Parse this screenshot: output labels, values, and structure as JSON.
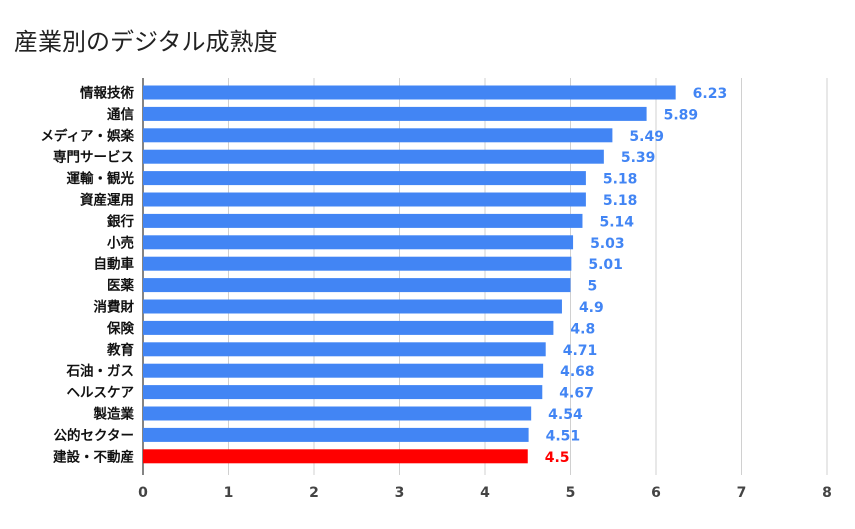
{
  "chart_data": {
    "type": "bar",
    "orientation": "horizontal",
    "title": "産業別のデジタル成熟度",
    "categories": [
      "情報技術",
      "通信",
      "メディア・娯楽",
      "専門サービス",
      "運輸・観光",
      "資産運用",
      "銀行",
      "小売",
      "自動車",
      "医薬",
      "消費財",
      "保険",
      "教育",
      "石油・ガス",
      "ヘルスケア",
      "製造業",
      "公的セクター",
      "建設・不動産"
    ],
    "values": [
      6.23,
      5.89,
      5.49,
      5.39,
      5.18,
      5.18,
      5.14,
      5.03,
      5.01,
      5,
      4.9,
      4.8,
      4.71,
      4.68,
      4.67,
      4.54,
      4.51,
      4.5
    ],
    "value_labels": [
      "6.23",
      "5.89",
      "5.49",
      "5.39",
      "5.18",
      "5.18",
      "5.14",
      "5.03",
      "5.01",
      "5",
      "4.9",
      "4.8",
      "4.71",
      "4.68",
      "4.67",
      "4.54",
      "4.51",
      "4.5"
    ],
    "highlight_index": 17,
    "xlim": [
      0,
      8
    ],
    "xticks": [
      "0",
      "1",
      "2",
      "3",
      "4",
      "5",
      "6",
      "7",
      "8"
    ],
    "grid": true,
    "colors": {
      "bar": "#4285f4",
      "highlight": "#ff0000",
      "label": "#4285f4",
      "highlight_label": "#ff0000"
    }
  }
}
